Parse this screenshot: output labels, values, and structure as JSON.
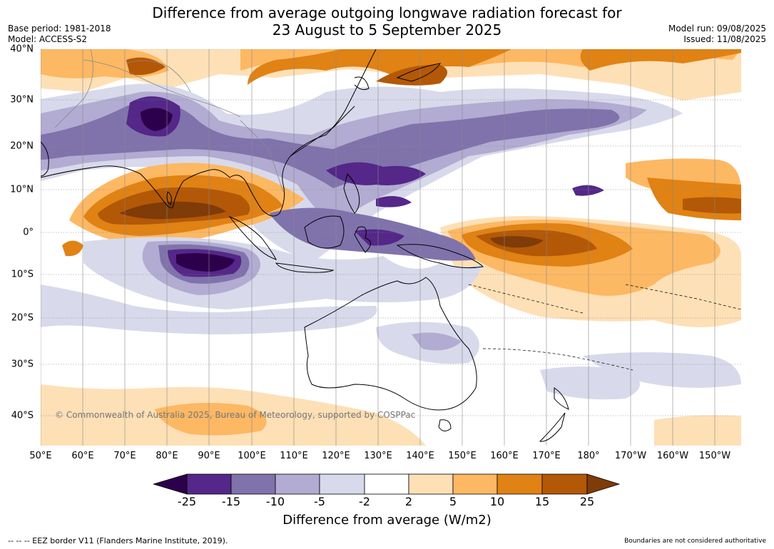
{
  "title": {
    "line1": "Difference from average outgoing longwave radiation forecast for",
    "line2": "23 August to 5 September 2025"
  },
  "meta": {
    "base_period": "Base period: 1981-2018",
    "model": "Model: ACCESS-S2",
    "model_run": "Model run: 09/08/2025",
    "issued": "Issued: 11/08/2025"
  },
  "axes": {
    "lat_labels": [
      "40°N",
      "30°N",
      "20°N",
      "10°N",
      "0°",
      "10°S",
      "20°S",
      "30°S",
      "40°S"
    ],
    "lon_labels": [
      "50°E",
      "60°E",
      "70°E",
      "80°E",
      "90°E",
      "100°E",
      "110°E",
      "120°E",
      "130°E",
      "140°E",
      "150°E",
      "160°E",
      "170°E",
      "180°",
      "170°W",
      "160°W",
      "150°W"
    ]
  },
  "map": {
    "extent": {
      "lon_min": 50,
      "lon_max": 216,
      "lat_min": -46,
      "lat_max": 40
    },
    "gridlines": "dotted-lat, solid-lon",
    "colors": {
      "lt_-25": "#2d004b",
      "-25_-15": "#542788",
      "-15_-10": "#8073ac",
      "-10_-5": "#b2abd2",
      "-5_-2": "#d8daeb",
      "-2_2": "#ffffff",
      "2_5": "#fee0b6",
      "5_10": "#fdb863",
      "10_15": "#e08214",
      "15_25": "#b35806",
      "gt_25": "#7f3b08"
    }
  },
  "copyright": "© Commonwealth of Australia 2025, Bureau of Meteorology, supported by COSPPac",
  "colorbar": {
    "labels": [
      "-25",
      "-15",
      "-10",
      "-5",
      "-2",
      "2",
      "5",
      "10",
      "15",
      "25"
    ],
    "colors": [
      "#542788",
      "#8073ac",
      "#b2abd2",
      "#d8daeb",
      "#ffffff",
      "#fee0b6",
      "#fdb863",
      "#e08214",
      "#b35806"
    ],
    "low_extend_color": "#2d004b",
    "high_extend_color": "#7f3b08",
    "title": "Difference from average (W/m2)"
  },
  "footer": {
    "eez": "--  --  -- EEZ border V11 (Flanders Marine Institute, 2019).",
    "disclaimer": "Boundaries are not considered authoritative"
  }
}
